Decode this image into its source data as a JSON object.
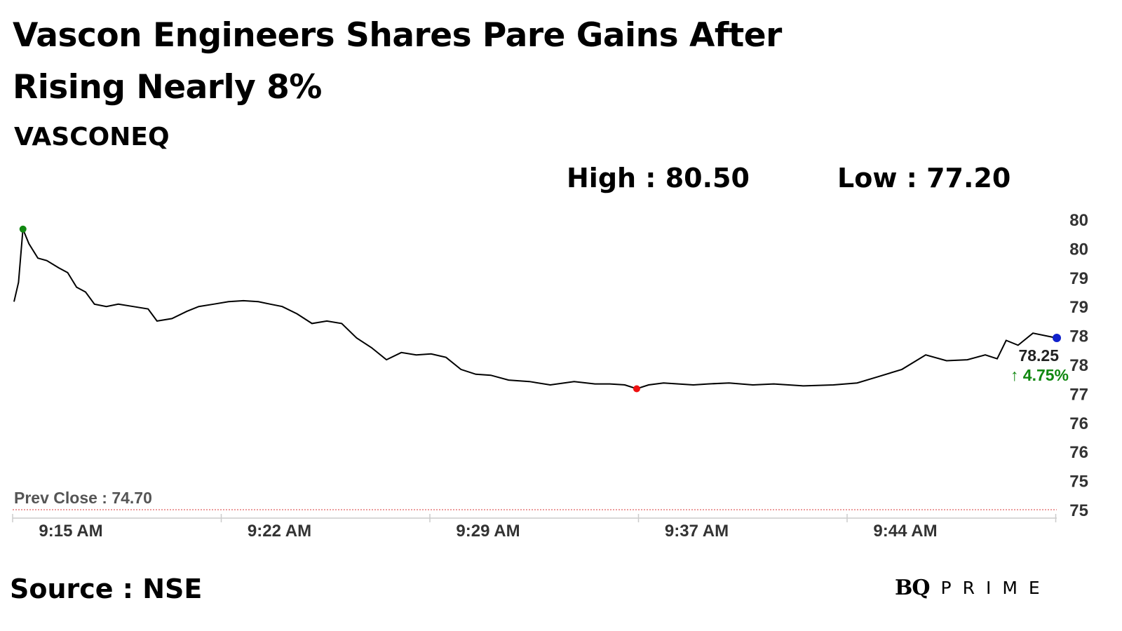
{
  "headline": "Vascon Engineers Shares Pare Gains After Rising Nearly 8%",
  "symbol": "VASCONEQ",
  "high_label": "High : 80.50",
  "low_label": "Low : 77.20",
  "source": "Source : NSE",
  "brand": {
    "mark": "BQ",
    "word": "PRIME"
  },
  "colors": {
    "line": "#000000",
    "high_marker": "#118811",
    "low_marker": "#ee1111",
    "last_marker": "#1122cc",
    "change_up": "#118811",
    "prev_close_line": "#e06060"
  },
  "chart_data": {
    "type": "line",
    "x_tick_labels": [
      "9:15 AM",
      "9:22 AM",
      "9:29 AM",
      "9:37 AM",
      "9:44 AM"
    ],
    "y_tick_labels": [
      "80",
      "80",
      "79",
      "79",
      "78",
      "78",
      "77",
      "76",
      "76",
      "75",
      "75"
    ],
    "ylim": [
      74.7,
      80.7
    ],
    "xlim": [
      0,
      35
    ],
    "prev_close_label": "Prev Close : 74.70",
    "prev_close": 74.7,
    "last_value_label": "78.25",
    "change_label": "↑ 4.75%",
    "high_point": {
      "x": 0.3,
      "y": 80.5
    },
    "low_point": {
      "x": 20.9,
      "y": 77.2
    },
    "last_point": {
      "x": 35.0,
      "y": 78.25
    },
    "series": [
      {
        "x": [
          0,
          0.15,
          0.3,
          0.5,
          0.8,
          1.1,
          1.5,
          1.8,
          2.1,
          2.4,
          2.7,
          3.1,
          3.5,
          4.0,
          4.5,
          4.8,
          5.3,
          5.8,
          6.2,
          6.7,
          7.2,
          7.7,
          8.2,
          8.6,
          9.0,
          9.5,
          10.0,
          10.5,
          11.0,
          11.5,
          12.0,
          12.5,
          13.0,
          13.5,
          14.0,
          14.5,
          15.0,
          15.5,
          16.0,
          16.6,
          17.3,
          18.0,
          18.8,
          19.5,
          20.0,
          20.5,
          20.9,
          21.3,
          21.8,
          22.3,
          22.8,
          23.3,
          24.0,
          24.8,
          25.5,
          26.5,
          27.5,
          28.3,
          29.0,
          29.8,
          30.6,
          31.3,
          32.0,
          32.6,
          33.0,
          33.3,
          33.7,
          34.2,
          35.0
        ],
        "values": [
          79.0,
          79.4,
          80.5,
          80.2,
          79.9,
          79.85,
          79.7,
          79.6,
          79.3,
          79.2,
          78.95,
          78.9,
          78.95,
          78.9,
          78.85,
          78.6,
          78.65,
          78.8,
          78.9,
          78.95,
          79.0,
          79.02,
          79.0,
          78.95,
          78.9,
          78.75,
          78.55,
          78.6,
          78.55,
          78.25,
          78.05,
          77.8,
          77.95,
          77.9,
          77.92,
          77.85,
          77.6,
          77.5,
          77.48,
          77.38,
          77.35,
          77.28,
          77.35,
          77.3,
          77.3,
          77.28,
          77.2,
          77.28,
          77.32,
          77.3,
          77.28,
          77.3,
          77.32,
          77.28,
          77.3,
          77.26,
          77.28,
          77.32,
          77.45,
          77.6,
          77.9,
          77.78,
          77.8,
          77.9,
          77.82,
          78.2,
          78.1,
          78.35,
          78.25
        ]
      }
    ],
    "grid": false,
    "legend": "none"
  }
}
